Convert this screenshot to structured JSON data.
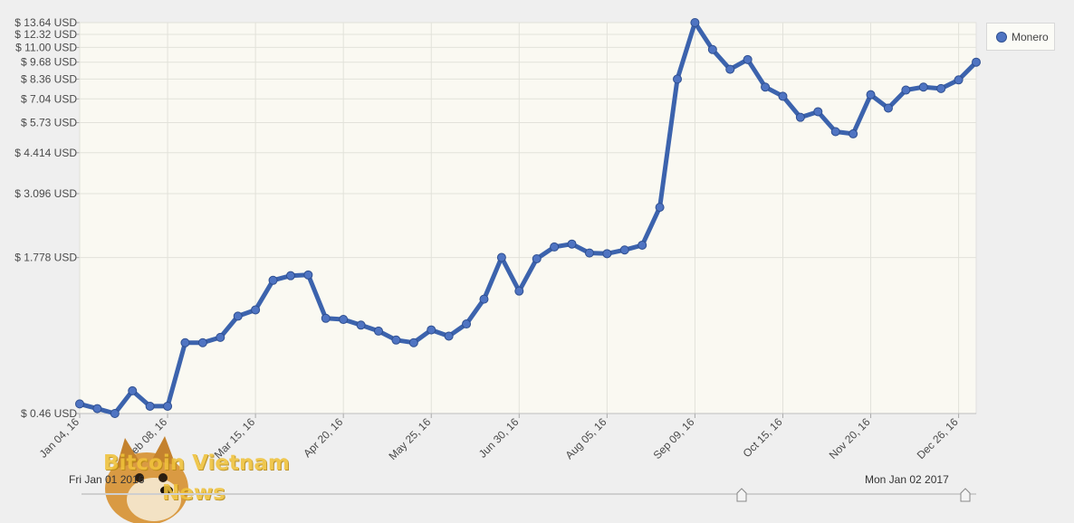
{
  "chart_data": {
    "type": "line",
    "title": "",
    "xlabel": "",
    "ylabel": "",
    "yscale": "log",
    "ylim": [
      0.46,
      13.64
    ],
    "grid": true,
    "legend_position": "top-right",
    "ytick_labels": [
      "$ 13.64 USD",
      "$ 12.32 USD",
      "$ 11.00 USD",
      "$ 9.68 USD",
      "$ 8.36 USD",
      "$ 7.04 USD",
      "$ 5.73 USD",
      "$ 4.414 USD",
      "$ 3.096 USD",
      "$ 1.778 USD",
      "$ 0.46 USD"
    ],
    "ytick_values": [
      13.64,
      12.32,
      11.0,
      9.68,
      8.36,
      7.04,
      5.73,
      4.414,
      3.096,
      1.778,
      0.46
    ],
    "xtick_labels": [
      "Jan 04, 16",
      "Feb 08, 16",
      "Mar 15, 16",
      "Apr 20, 16",
      "May 25, 16",
      "Jun 30, 16",
      "Aug 05, 16",
      "Sep 09, 16",
      "Oct 15, 16",
      "Nov 20, 16",
      "Dec 26, 16"
    ],
    "series": [
      {
        "name": "Monero",
        "color": "#3c63ad",
        "marker_color": "#4f74c2",
        "x": [
          "2016-01-04",
          "2016-01-11",
          "2016-01-18",
          "2016-01-25",
          "2016-02-01",
          "2016-02-08",
          "2016-02-15",
          "2016-02-22",
          "2016-02-29",
          "2016-03-07",
          "2016-03-14",
          "2016-03-21",
          "2016-03-28",
          "2016-04-04",
          "2016-04-11",
          "2016-04-18",
          "2016-04-25",
          "2016-05-02",
          "2016-05-09",
          "2016-05-16",
          "2016-05-23",
          "2016-05-30",
          "2016-06-06",
          "2016-06-13",
          "2016-06-20",
          "2016-06-27",
          "2016-07-04",
          "2016-07-11",
          "2016-07-18",
          "2016-07-25",
          "2016-08-01",
          "2016-08-08",
          "2016-08-15",
          "2016-08-22",
          "2016-08-29",
          "2016-09-05",
          "2016-09-12",
          "2016-09-19",
          "2016-09-26",
          "2016-10-03",
          "2016-10-10",
          "2016-10-17",
          "2016-10-24",
          "2016-10-31",
          "2016-11-07",
          "2016-11-14",
          "2016-11-21",
          "2016-11-28",
          "2016-12-05",
          "2016-12-12",
          "2016-12-19",
          "2016-12-26"
        ],
        "values": [
          0.5,
          0.48,
          0.46,
          0.56,
          0.49,
          0.49,
          0.85,
          0.85,
          0.89,
          1.07,
          1.13,
          1.46,
          1.52,
          1.53,
          1.05,
          1.04,
          0.99,
          0.94,
          0.87,
          0.85,
          0.95,
          0.9,
          1.0,
          1.24,
          1.78,
          1.33,
          1.76,
          1.95,
          2.0,
          1.85,
          1.84,
          1.9,
          1.98,
          2.75,
          8.36,
          13.64,
          10.8,
          9.1,
          9.9,
          7.8,
          7.2,
          6.0,
          6.3,
          5.3,
          5.2,
          7.3,
          6.5,
          7.6,
          7.8,
          7.7,
          8.3,
          9.68
        ]
      }
    ]
  },
  "legend": {
    "series_label": "Monero"
  },
  "range_selector": {
    "start_label": "Fri Jan 01 2016",
    "end_label": "Mon Jan 02 2017"
  },
  "watermark": {
    "line1": "Bitcoin Vietnam",
    "line2": "News"
  }
}
